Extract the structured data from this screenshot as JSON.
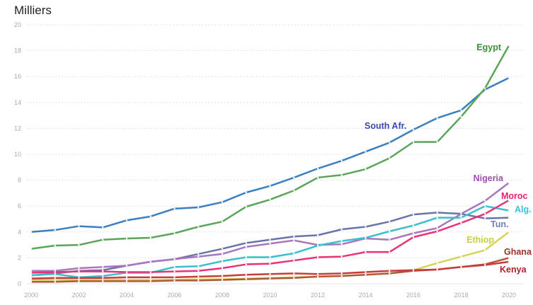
{
  "chart_data": {
    "type": "line",
    "title": "Milliers",
    "xlabel": "",
    "ylabel": "",
    "xlim": [
      2000,
      2020
    ],
    "ylim": [
      0,
      20
    ],
    "x_ticks": [
      2000,
      2002,
      2004,
      2006,
      2008,
      2010,
      2012,
      2014,
      2016,
      2018,
      2020
    ],
    "y_ticks": [
      0,
      2,
      4,
      6,
      8,
      10,
      12,
      14,
      16,
      18,
      20
    ],
    "grid": true,
    "legend": "direct labels at line ends",
    "x": [
      2000,
      2001,
      2002,
      2003,
      2004,
      2005,
      2006,
      2007,
      2008,
      2009,
      2010,
      2011,
      2012,
      2013,
      2014,
      2015,
      2016,
      2017,
      2018,
      2019,
      2020
    ],
    "series": [
      {
        "name": "South Afr.",
        "color": "#3a7fc0",
        "label_color": "#3b48b8",
        "values": [
          4.0,
          4.15,
          4.45,
          4.35,
          4.9,
          5.2,
          5.8,
          5.9,
          6.3,
          7.05,
          7.55,
          8.2,
          8.9,
          9.5,
          10.2,
          10.9,
          11.9,
          12.8,
          13.4,
          15.0,
          15.9
        ]
      },
      {
        "name": "Egypt",
        "color": "#5aa55a",
        "label_color": "#3d8f3d",
        "values": [
          2.7,
          2.95,
          3.0,
          3.4,
          3.5,
          3.55,
          3.9,
          4.4,
          4.8,
          5.95,
          6.5,
          7.2,
          8.2,
          8.4,
          8.85,
          9.7,
          10.95,
          10.95,
          12.9,
          15.1,
          18.4
        ]
      },
      {
        "name": "Tun.",
        "color": "#6a74a8",
        "label_color": "#7080b8",
        "values": [
          0.65,
          0.8,
          1.0,
          1.05,
          1.4,
          1.7,
          1.9,
          2.3,
          2.7,
          3.15,
          3.4,
          3.65,
          3.75,
          4.2,
          4.4,
          4.8,
          5.35,
          5.5,
          5.4,
          5.05,
          5.1
        ]
      },
      {
        "name": "Nigeria",
        "color": "#a875c0",
        "label_color": "#a050b0",
        "values": [
          1.0,
          1.0,
          1.2,
          1.3,
          1.4,
          1.7,
          1.9,
          2.1,
          2.3,
          2.85,
          3.1,
          3.35,
          3.0,
          3.05,
          3.5,
          3.4,
          3.9,
          4.3,
          5.4,
          6.4,
          7.8
        ]
      },
      {
        "name": "Alg.",
        "color": "#3cbfcc",
        "label_color": "#3cbfdc",
        "values": [
          0.65,
          0.75,
          0.5,
          0.6,
          0.85,
          0.85,
          1.3,
          1.35,
          1.75,
          2.05,
          2.05,
          2.35,
          2.95,
          3.3,
          3.55,
          4.05,
          4.5,
          5.1,
          5.1,
          6.0,
          5.65
        ]
      },
      {
        "name": "Moroc",
        "color": "#e8337a",
        "label_color": "#e8206e",
        "values": [
          0.85,
          0.9,
          0.95,
          0.95,
          0.9,
          0.9,
          0.95,
          1.0,
          1.2,
          1.5,
          1.55,
          1.8,
          2.05,
          2.1,
          2.45,
          2.45,
          3.6,
          4.05,
          4.7,
          5.4,
          6.45
        ]
      },
      {
        "name": "Ethiop",
        "color": "#d4d45a",
        "label_color": "#c8d040",
        "values": [
          0.3,
          0.3,
          0.3,
          0.3,
          0.3,
          0.3,
          0.3,
          0.35,
          0.35,
          0.4,
          0.45,
          0.5,
          0.55,
          0.6,
          0.7,
          0.8,
          1.05,
          1.6,
          2.1,
          2.6,
          4.0
        ]
      },
      {
        "name": "Ghana",
        "color": "#b05a3a",
        "label_color": "#a03028",
        "values": [
          0.15,
          0.15,
          0.2,
          0.2,
          0.2,
          0.2,
          0.25,
          0.25,
          0.3,
          0.35,
          0.4,
          0.45,
          0.55,
          0.6,
          0.7,
          0.8,
          1.0,
          1.1,
          1.3,
          1.5,
          2.0
        ]
      },
      {
        "name": "Kenya",
        "color": "#c83c3c",
        "label_color": "#b01e2a",
        "values": [
          0.4,
          0.45,
          0.45,
          0.45,
          0.5,
          0.5,
          0.5,
          0.55,
          0.6,
          0.7,
          0.75,
          0.8,
          0.75,
          0.8,
          0.9,
          1.0,
          1.05,
          1.1,
          1.3,
          1.45,
          1.7
        ]
      }
    ]
  }
}
